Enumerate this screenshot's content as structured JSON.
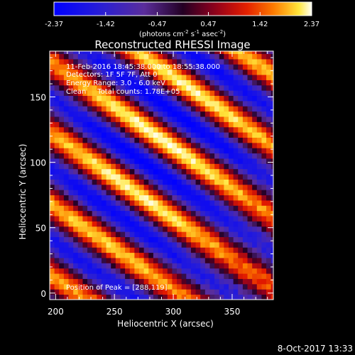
{
  "chart_data": {
    "type": "heatmap",
    "title": "Reconstructed RHESSI Image",
    "xlabel": "Heliocentric X (arcsec)",
    "ylabel": "Heliocentric Y (arcsec)",
    "xlim": [
      195,
      385
    ],
    "ylim": [
      -5,
      185
    ],
    "x_ticks": [
      200,
      250,
      300,
      350
    ],
    "y_ticks": [
      0,
      50,
      100,
      150
    ],
    "colorbar": {
      "min": -2.37,
      "max": 2.37,
      "ticks": [
        "-2.37",
        "-1.42",
        "-0.47",
        "0.47",
        "1.42",
        "2.37"
      ],
      "unit_parts": [
        "(photons cm",
        "-2",
        " s",
        "-1",
        " asec",
        "-2",
        ")"
      ]
    },
    "annotations": [
      "11-Feb-2016 18:45:38.000 to 18:55:38.000",
      "Detectors: 1F 5F 7F, Att 0",
      "Energy Range: 3.0 - 6.0 keV",
      "Clean     Total counts: 1.78E+05"
    ],
    "peak_label": "Position of Peak = [288,119]",
    "peak": {
      "x": 288,
      "y": 119,
      "value": 2.37
    },
    "model": {
      "description_of_fringes": "diagonal fringe pattern, peak at [288,119]",
      "fringe_direction_deg": 58,
      "fringe_period_arcsec": 46
    }
  },
  "footer": {
    "date": "8-Oct-2017 13:33"
  }
}
